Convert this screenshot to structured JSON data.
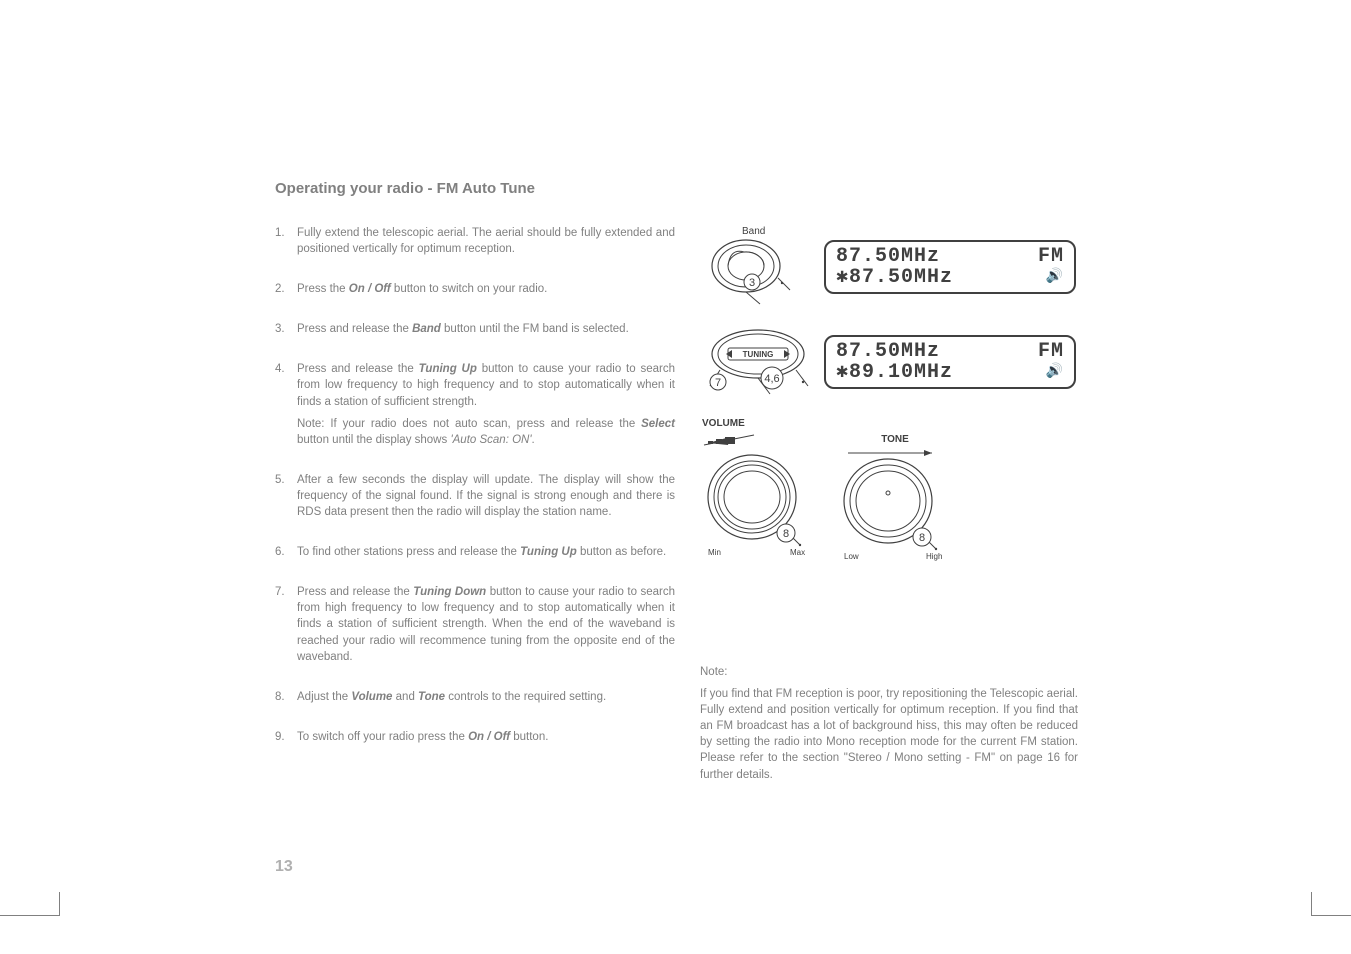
{
  "title": "Operating your radio - FM Auto Tune",
  "steps": [
    {
      "n": "1.",
      "html": "Fully extend the telescopic aerial. The aerial should be fully extended and positioned vertically for optimum reception."
    },
    {
      "n": "2.",
      "html": "Press the <b>On / Off</b> button to switch on your radio."
    },
    {
      "n": "3.",
      "html": "Press and release the <b>Band</b> button until the FM band is selected."
    },
    {
      "n": "4.",
      "html": "Press and release the <b>Tuning Up</b> button to cause your radio to search from low frequency to high frequency and to stop automatically when it finds a station of sufficient strength.",
      "sub": "Note: If your radio does not auto scan, press and release the <b>Select</b> button until the display shows <i>'Auto Scan: ON'</i>."
    },
    {
      "n": "5.",
      "html": "After a few seconds the display will update. The display will show the frequency of the signal found. If the signal is strong enough and there is RDS data present then the radio will display the station name."
    },
    {
      "n": "6.",
      "html": "To find other stations press and release the <b>Tuning Up</b> button as before."
    },
    {
      "n": "7.",
      "html": "Press and release the <b>Tuning Down</b> button to cause your radio to search from high frequency to low frequency and to stop automatically when it finds a station of sufficient strength. When the end of the waveband is reached your radio will recommence tuning from the opposite end of the waveband."
    },
    {
      "n": "8.",
      "html": "Adjust the <b>Volume</b> and <b>Tone</b> controls to the required setting."
    },
    {
      "n": "9.",
      "html": "To switch off your radio press the <b>On / Off</b> button."
    }
  ],
  "pageNum": "13",
  "labels": {
    "band": "Band",
    "volume": "VOLUME",
    "tone": "TONE",
    "tuning": "TUNING",
    "min": "Min",
    "max": "Max",
    "low": "Low",
    "high": "High"
  },
  "lcd1": {
    "line1a": "87.50MHz",
    "line1b": "FM",
    "line2a": "✱87.50MHz",
    "line2b": "🔊"
  },
  "lcd2": {
    "line1a": "87.50MHz",
    "line1b": "FM",
    "line2a": "✱89.10MHz",
    "line2b": "🔊"
  },
  "callouts": {
    "band": "3",
    "tuningL": "7",
    "tuningR": "4,6",
    "vol": "8",
    "tone": "8"
  },
  "note": {
    "title": "Note:",
    "body": "If you find that FM reception is poor, try repositioning the Telescopic aerial. Fully extend and position vertically for optimum reception. If you find that an FM broadcast has a lot of background hiss, this may often be reduced by setting the radio into Mono reception mode for the current FM station. Please refer to the section \"Stereo / Mono setting - FM\" on page 16 for further details."
  },
  "colors": {
    "text": "#808080",
    "dark": "#404040"
  }
}
